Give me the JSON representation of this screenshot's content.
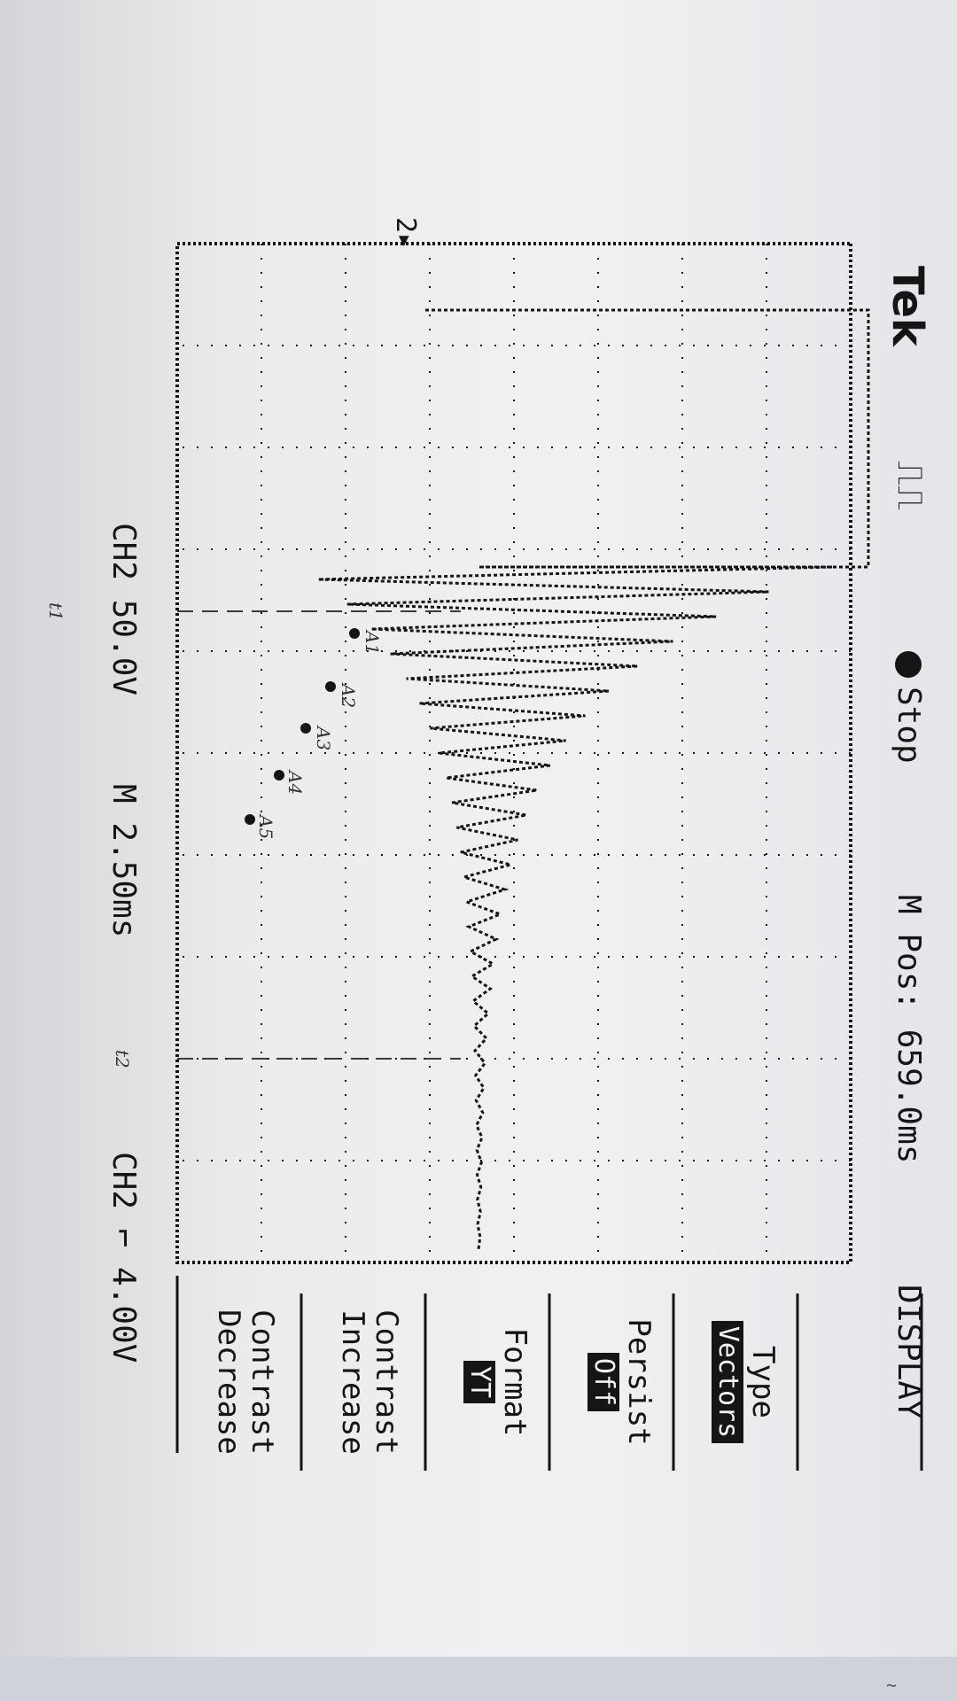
{
  "scope": {
    "brand": "Tek",
    "status": "Stop",
    "m_pos": "M Pos: 659.0ms",
    "ch_scale": "CH2  50.0V",
    "time_scale": "M 2.50ms",
    "trigger": "CH2 ⌐ 4.00V",
    "ch_marker": "2▸"
  },
  "menu": {
    "title": "DISPLAY",
    "buttons": [
      {
        "label": "Type",
        "value": "Vectors"
      },
      {
        "label": "Persist",
        "value": "Off"
      },
      {
        "label": "Format",
        "value": "YT"
      },
      {
        "label": "Contrast Increase",
        "value": ""
      },
      {
        "label": "Contrast Decrease",
        "value": ""
      }
    ]
  },
  "annotations": {
    "peaks": [
      "A1",
      "A2",
      "A3",
      "A4",
      "A5"
    ],
    "cursor_1": "t1",
    "cursor_2": "t2"
  },
  "colors": {
    "ink": "#151515",
    "paper": "#eeeef0",
    "pencil": "#3a3a3a"
  }
}
